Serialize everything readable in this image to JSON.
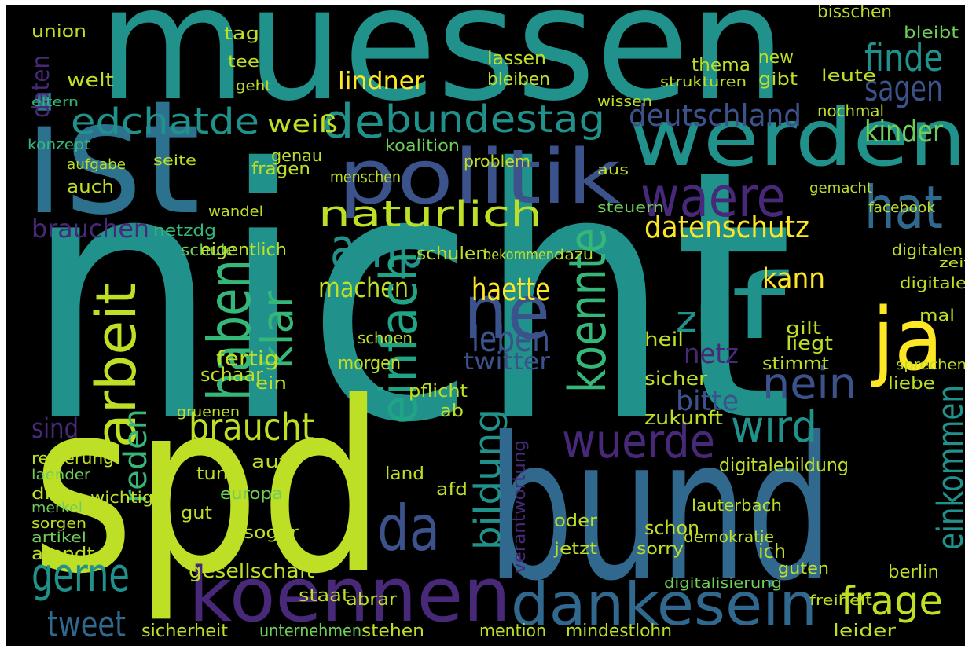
{
  "words": [
    "nicht",
    "muessen",
    "ist",
    "spd",
    "bund",
    "werden",
    "politik",
    "koennen",
    "dankesein",
    "ja",
    "ne",
    "f",
    "waere",
    "hat",
    "amp",
    "de",
    "edchatde",
    "bundestag",
    "deutschland",
    "finde",
    "sagen",
    "kinder",
    "naturlich",
    "datenschutz",
    "lindner",
    "weiß",
    "braucht",
    "gerne",
    "tweet",
    "wuerde",
    "wird",
    "nein",
    "frage",
    "da",
    "zb",
    "kann",
    "haette",
    "machen",
    "leben",
    "sind",
    "brauchen",
    "netz",
    "bitte",
    "twitter",
    "einfach",
    "koennte",
    "haben",
    "arbeit",
    "klar",
    "einkommen",
    "bildung",
    "reden",
    "daten",
    "verantwortung",
    "union",
    "welt",
    "eltern",
    "konzept",
    "schule",
    "eigentlich",
    "netzdg",
    "auch",
    "aufgabe",
    "seite",
    "tag",
    "ein",
    "fertig",
    "schaar",
    "gruenen",
    "regierung",
    "laender",
    "die",
    "merkel",
    "sorgen",
    "artikel",
    "arendt",
    "wichtig",
    "gut",
    "europa",
    "sogar",
    "staat",
    "abrar",
    "gesellschaft",
    "sicherheit",
    "unternehmen",
    "stehen",
    "mention",
    "mindestlohn",
    "leider",
    "berlin",
    "digitalebildung",
    "lauterbach",
    "ich",
    "demokratie",
    "stimmt",
    "liegt",
    "gilt",
    "zukunft",
    "sicher",
    "heil",
    "digitale",
    "digitalen",
    "zeit",
    "mal",
    "liebe",
    "sprechen",
    "facebook",
    "gemacht",
    "gibt",
    "new",
    "nochmal",
    "leute",
    "bisschen",
    "bleibt",
    "thema",
    "strukturen",
    "lassen",
    "bleiben",
    "tee",
    "geht",
    "wissen",
    "aus",
    "steuern",
    "dazu",
    "fragen",
    "genau",
    "menschen",
    "koalition",
    "problem",
    "schulen",
    "bekommen",
    "wandel",
    "tun",
    "morgen",
    "schoen",
    "pflicht",
    "land",
    "afd",
    "oder",
    "jetzt",
    "schon",
    "sorry",
    "guten",
    "freiheit",
    "digitalisierung",
    "ab",
    "auf"
  ]
}
